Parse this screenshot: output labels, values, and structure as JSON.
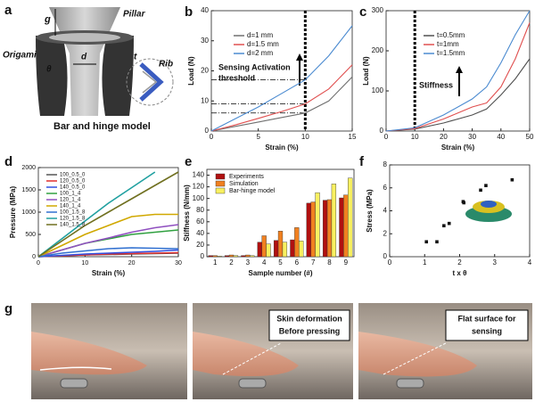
{
  "chart_data": [
    {
      "type": "line",
      "panel": "b",
      "xlabel": "Strain (%)",
      "ylabel": "Load (N)",
      "x": [
        0,
        2.5,
        5,
        7.5,
        10,
        12.5,
        15
      ],
      "series": [
        {
          "name": "d=1 mm",
          "color": "#707070",
          "values": [
            0,
            1.5,
            3,
            4.5,
            6,
            10,
            18
          ]
        },
        {
          "name": "d=1.5 mm",
          "color": "#e05050",
          "values": [
            0,
            2,
            4.2,
            6.5,
            9,
            14,
            22
          ]
        },
        {
          "name": "d=2 mm",
          "color": "#4a8ad0",
          "values": [
            0,
            4,
            8,
            12.5,
            17,
            25,
            35
          ]
        }
      ],
      "xlim": [
        0,
        15
      ],
      "xticks": [
        0,
        5,
        10,
        15
      ],
      "ylim": [
        0,
        40
      ],
      "yticks": [
        0,
        10,
        20,
        30,
        40
      ],
      "vline": 10,
      "hlines": [
        17,
        9,
        6
      ],
      "annotations": [
        "Sensing Activation",
        "threshold"
      ]
    },
    {
      "type": "line",
      "panel": "c",
      "xlabel": "Strain (%)",
      "ylabel": "Load (N)",
      "x": [
        0,
        10,
        20,
        30,
        35,
        40,
        45,
        50
      ],
      "series": [
        {
          "name": "t=0.5mm",
          "color": "#505050",
          "values": [
            0,
            5,
            20,
            40,
            55,
            90,
            130,
            180
          ]
        },
        {
          "name": "t=1mm",
          "color": "#e05050",
          "values": [
            0,
            6,
            30,
            60,
            70,
            110,
            180,
            270
          ]
        },
        {
          "name": "t=1.5mm",
          "color": "#4a8ad0",
          "values": [
            0,
            8,
            40,
            80,
            110,
            170,
            240,
            300
          ]
        }
      ],
      "xlim": [
        0,
        50
      ],
      "xticks": [
        0,
        10,
        20,
        30,
        40,
        50
      ],
      "ylim": [
        0,
        300
      ],
      "yticks": [
        0,
        100,
        200,
        300
      ],
      "vline": 10,
      "annotations": [
        "Stiffness"
      ]
    },
    {
      "type": "line",
      "panel": "d",
      "xlabel": "Strain (%)",
      "ylabel": "Pressure (MPa)",
      "x": [
        0,
        5,
        10,
        15,
        20,
        25,
        30
      ],
      "series": [
        {
          "name": "100_0.5_0",
          "color": "#555555",
          "values": [
            0,
            20,
            40,
            50,
            60,
            70,
            80
          ]
        },
        {
          "name": "120_0.5_0",
          "color": "#e03030",
          "values": [
            0,
            20,
            40,
            60,
            70,
            80,
            90
          ]
        },
        {
          "name": "140_0.5_0",
          "color": "#3050e0",
          "values": [
            0,
            30,
            60,
            80,
            100,
            120,
            150
          ]
        },
        {
          "name": "100_1_4",
          "color": "#30a040",
          "values": [
            0,
            150,
            300,
            400,
            500,
            550,
            600
          ]
        },
        {
          "name": "120_1_4",
          "color": "#9050c0",
          "values": [
            0,
            150,
            300,
            420,
            550,
            650,
            720
          ]
        },
        {
          "name": "140_1_4",
          "color": "#d0a800",
          "values": [
            0,
            250,
            500,
            700,
            900,
            950,
            950
          ]
        },
        {
          "name": "100_1.5_8",
          "color": "#3070d0",
          "values": [
            0,
            80,
            130,
            180,
            200,
            190,
            180
          ]
        },
        {
          "name": "120_1.5_8",
          "color": "#20a0a0",
          "values": [
            0,
            400,
            800,
            1200,
            1550,
            1900,
            null
          ]
        },
        {
          "name": "140_1.5_8",
          "color": "#707020",
          "values": [
            0,
            350,
            700,
            1000,
            1300,
            1600,
            1900
          ]
        }
      ],
      "xlim": [
        0,
        30
      ],
      "xticks": [
        0,
        10,
        20,
        30
      ],
      "ylim": [
        0,
        2000
      ],
      "yticks": [
        0,
        500,
        1000,
        1500,
        2000
      ]
    },
    {
      "type": "bar",
      "panel": "e",
      "xlabel": "Sample number (#)",
      "ylabel": "Stiffness (N/mm)",
      "categories": [
        "1",
        "2",
        "3",
        "4",
        "5",
        "6",
        "7",
        "8",
        "9"
      ],
      "series": [
        {
          "name": "Experiments",
          "color": "#b01010",
          "values": [
            2,
            2,
            2,
            25,
            28,
            29,
            92,
            97,
            101
          ]
        },
        {
          "name": "Simulation",
          "color": "#f08020",
          "values": [
            2,
            3,
            3,
            36,
            44,
            50,
            94,
            98,
            106
          ]
        },
        {
          "name": "Bar-hinge model",
          "color": "#f8f060",
          "values": [
            1,
            2,
            2,
            22,
            25,
            27,
            110,
            125,
            135
          ]
        }
      ],
      "ylim": [
        0,
        150
      ],
      "yticks": [
        0,
        20,
        40,
        60,
        80,
        100,
        120,
        140
      ]
    },
    {
      "type": "scatter",
      "panel": "f",
      "xlabel": "t x θ",
      "ylabel": "Stress (MPa)",
      "color": "#111111",
      "x": [
        1.05,
        1.35,
        1.55,
        1.7,
        2.1,
        2.12,
        2.6,
        2.75,
        3.5
      ],
      "values": [
        1.3,
        1.3,
        2.7,
        2.9,
        4.8,
        4.7,
        5.8,
        6.2,
        6.7
      ],
      "xlim": [
        0,
        4
      ],
      "xticks": [
        0,
        1,
        2,
        3,
        4
      ],
      "ylim": [
        0,
        8
      ],
      "yticks": [
        0,
        2,
        4,
        6,
        8
      ]
    }
  ],
  "figure": {
    "panel_a": {
      "panel": "a",
      "labels": [
        "g",
        "Pillar",
        "Origami",
        "d",
        "t",
        "θ",
        "Rib"
      ],
      "caption": "Bar and hinge model"
    },
    "panel_g": {
      "panel": "g",
      "callouts": [
        [
          "Skin deformation",
          "Before pressing"
        ],
        [
          "Flat surface for",
          "sensing"
        ]
      ]
    }
  }
}
